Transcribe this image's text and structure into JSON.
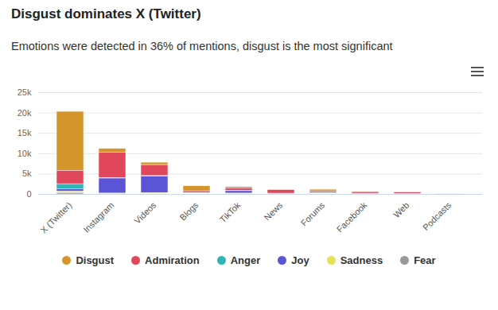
{
  "chart_data": {
    "type": "bar",
    "stacked": true,
    "title": "Disgust dominates X (Twitter)",
    "subtitle": "Emotions were detected in 36% of mentions, disgust is the most significant",
    "categories": [
      "X (Twitter)",
      "Instagram",
      "Videos",
      "Blogs",
      "TikTok",
      "News",
      "Forums",
      "Facebook",
      "Web",
      "Podcasts"
    ],
    "series": [
      {
        "name": "Disgust",
        "color": "#d4962a",
        "values": [
          14500,
          900,
          600,
          1250,
          300,
          50,
          500,
          50,
          30,
          0
        ]
      },
      {
        "name": "Admiration",
        "color": "#e0475a",
        "values": [
          3300,
          6300,
          2700,
          500,
          600,
          900,
          400,
          400,
          350,
          30
        ]
      },
      {
        "name": "Anger",
        "color": "#2fb5b5",
        "values": [
          1200,
          100,
          100,
          50,
          100,
          30,
          50,
          20,
          20,
          0
        ]
      },
      {
        "name": "Joy",
        "color": "#5b54d6",
        "values": [
          600,
          3700,
          4100,
          100,
          600,
          100,
          100,
          100,
          100,
          10
        ]
      },
      {
        "name": "Sadness",
        "color": "#e3e35a",
        "values": [
          400,
          100,
          200,
          50,
          100,
          20,
          50,
          20,
          10,
          0
        ]
      },
      {
        "name": "Fear",
        "color": "#999999",
        "values": [
          300,
          100,
          100,
          50,
          100,
          20,
          50,
          20,
          10,
          0
        ]
      }
    ],
    "ylim": [
      0,
      25000
    ],
    "yticks": [
      0,
      {
        "value": 5000,
        "label": "5k"
      },
      {
        "value": 10000,
        "label": "10k"
      },
      {
        "value": 15000,
        "label": "15k"
      },
      {
        "value": 20000,
        "label": "20k"
      },
      {
        "value": 25000,
        "label": "25k"
      }
    ],
    "grid": true,
    "legend": "bottom"
  }
}
